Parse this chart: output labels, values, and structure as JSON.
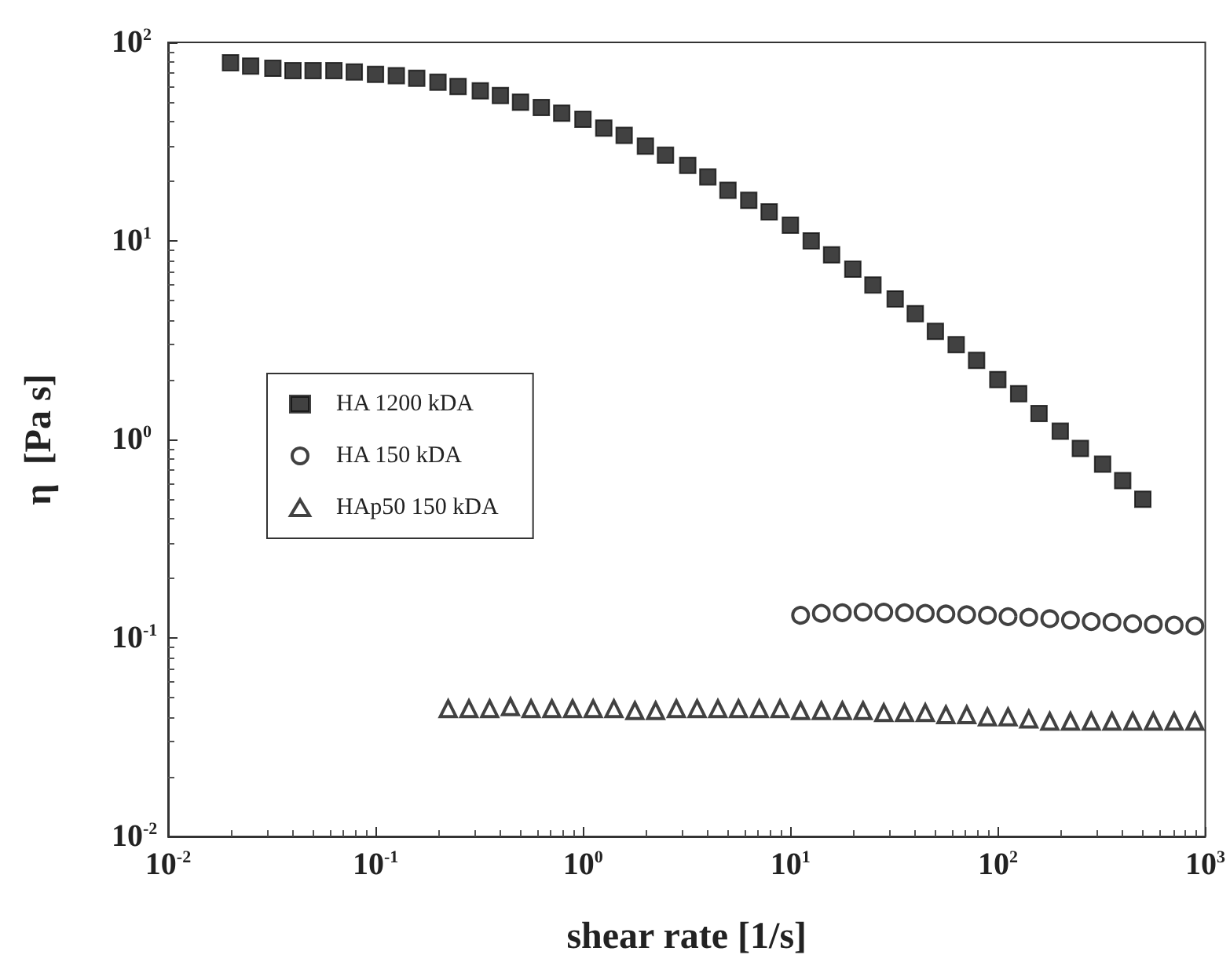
{
  "chart_data": {
    "type": "scatter",
    "xlabel": "shear rate [1/s]",
    "ylabel": "η  [Pa s]",
    "log": "xy",
    "xlim": [
      0.01,
      1000
    ],
    "ylim": [
      0.01,
      100
    ],
    "xticks": [
      {
        "value": 0.01,
        "label": "10$^{-2}$"
      },
      {
        "value": 0.1,
        "label": "10$^{-1}$"
      },
      {
        "value": 1,
        "label": "10$^{0}$"
      },
      {
        "value": 10,
        "label": "10$^{1}$"
      },
      {
        "value": 100,
        "label": "10$^{2}$"
      },
      {
        "value": 1000,
        "label": "10$^{3}$"
      }
    ],
    "yticks": [
      {
        "value": 0.01,
        "label": "10$^{-2}$"
      },
      {
        "value": 0.1,
        "label": "10$^{-1}$"
      },
      {
        "value": 1,
        "label": "10$^{0}$"
      },
      {
        "value": 10,
        "label": "10$^{1}$"
      },
      {
        "value": 100,
        "label": "10$^{2}$"
      }
    ],
    "grid": false,
    "legend": "left",
    "series": [
      {
        "name": "HA 1200 kDA",
        "color": "#111111",
        "marker": "square",
        "x": [
          0.02,
          0.025,
          0.032,
          0.04,
          0.05,
          0.063,
          0.079,
          0.1,
          0.126,
          0.158,
          0.2,
          0.25,
          0.32,
          0.4,
          0.5,
          0.63,
          0.79,
          1,
          1.26,
          1.58,
          2,
          2.5,
          3.2,
          4,
          5,
          6.3,
          7.9,
          10,
          12.6,
          15.8,
          20,
          25,
          32,
          40,
          50,
          63,
          79,
          100,
          126,
          158,
          200,
          250,
          320,
          400,
          500
        ],
        "values": [
          79,
          76,
          74,
          72,
          72,
          72,
          71,
          69,
          68,
          66,
          63,
          60,
          57,
          54,
          50,
          47,
          44,
          41,
          37,
          34,
          30,
          27,
          24,
          21,
          18,
          16,
          14,
          12,
          10,
          8.5,
          7.2,
          6.0,
          5.1,
          4.3,
          3.5,
          3.0,
          2.5,
          2.0,
          1.7,
          1.35,
          1.1,
          0.9,
          0.75,
          0.62,
          0.5
        ]
      },
      {
        "name": "HA 150 kDA",
        "color": "#111111",
        "marker": "circle",
        "x": [
          11.2,
          14.1,
          17.8,
          22.4,
          28.2,
          35.5,
          44.7,
          56.2,
          70.8,
          89.1,
          112,
          141,
          178,
          224,
          282,
          355,
          447,
          562,
          708,
          891
        ],
        "values": [
          0.13,
          0.133,
          0.134,
          0.135,
          0.135,
          0.134,
          0.133,
          0.132,
          0.131,
          0.13,
          0.128,
          0.127,
          0.125,
          0.123,
          0.121,
          0.12,
          0.118,
          0.117,
          0.116,
          0.115
        ]
      },
      {
        "name": "HAp50 150 kDA",
        "color": "#111111",
        "marker": "triangle",
        "x": [
          0.224,
          0.282,
          0.355,
          0.447,
          0.562,
          0.708,
          0.891,
          1.12,
          1.41,
          1.78,
          2.24,
          2.82,
          3.55,
          4.47,
          5.62,
          7.08,
          8.91,
          11.2,
          14.1,
          17.8,
          22.4,
          28.2,
          35.5,
          44.7,
          56.2,
          70.8,
          89.1,
          112,
          141,
          178,
          224,
          282,
          355,
          447,
          562,
          708,
          891
        ],
        "values": [
          0.044,
          0.044,
          0.044,
          0.045,
          0.044,
          0.044,
          0.044,
          0.044,
          0.044,
          0.043,
          0.043,
          0.044,
          0.044,
          0.044,
          0.044,
          0.044,
          0.044,
          0.043,
          0.043,
          0.043,
          0.043,
          0.042,
          0.042,
          0.042,
          0.041,
          0.041,
          0.04,
          0.04,
          0.039,
          0.038,
          0.038,
          0.038,
          0.038,
          0.038,
          0.038,
          0.038,
          0.038
        ]
      }
    ]
  }
}
